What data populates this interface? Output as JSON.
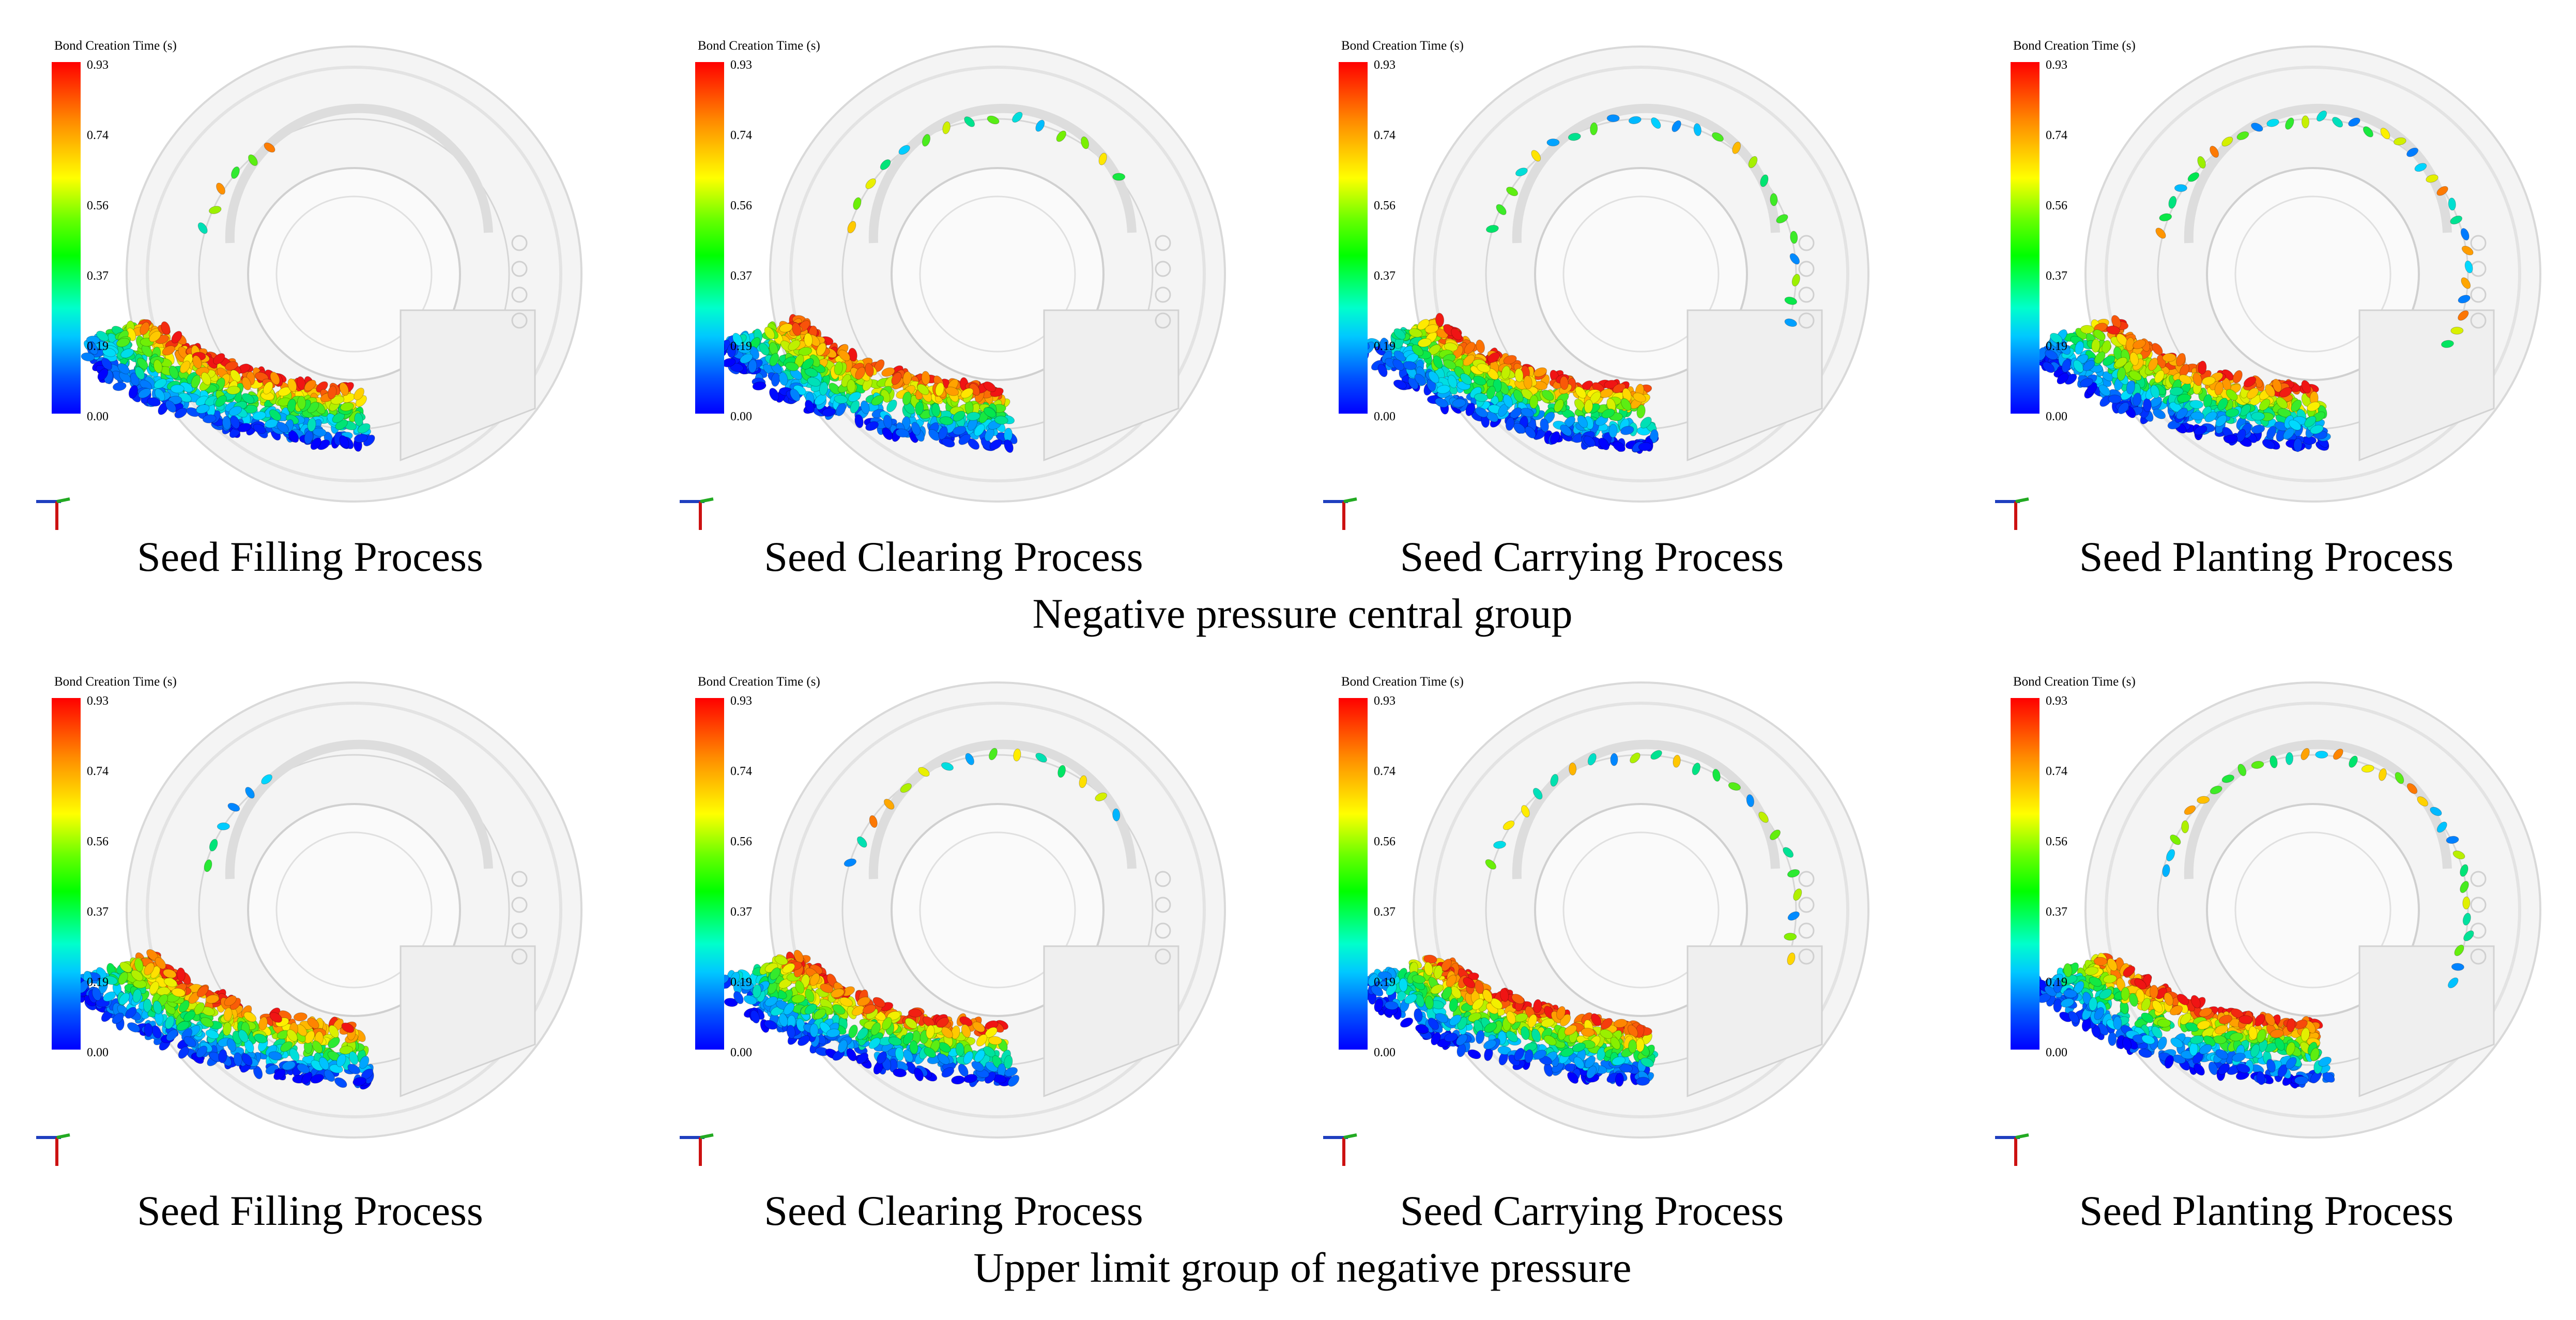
{
  "legend": {
    "title": "Bond Creation Time (s)",
    "ticks": [
      "0.93",
      "0.74",
      "0.56",
      "0.37",
      "0.19",
      "0.00"
    ]
  },
  "groups": [
    {
      "label": "Negative pressure central group",
      "panels": [
        {
          "caption": "Seed Filling Process"
        },
        {
          "caption": "Seed Clearing Process"
        },
        {
          "caption": "Seed Carrying Process"
        },
        {
          "caption": "Seed Planting Process"
        }
      ]
    },
    {
      "label": "Upper limit group of negative pressure",
      "panels": [
        {
          "caption": "Seed Filling Process"
        },
        {
          "caption": "Seed Clearing Process"
        },
        {
          "caption": "Seed Carrying Process"
        },
        {
          "caption": "Seed Planting Process"
        }
      ]
    }
  ],
  "colors": {
    "disc": "#f4f4f4",
    "disc_edge": "#d9d9d9",
    "axis_x": "#1f3fbf",
    "axis_y": "#cc1111",
    "axis_z": "#22aa22"
  }
}
